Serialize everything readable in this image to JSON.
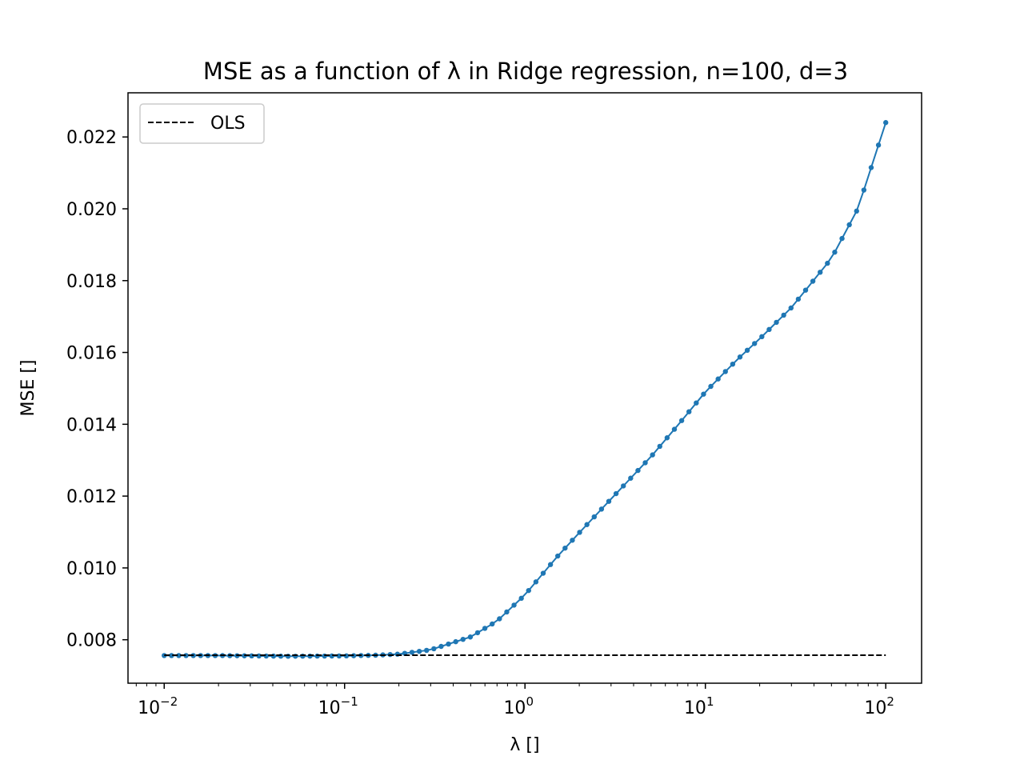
{
  "chart_data": {
    "type": "line",
    "title": "MSE as a function of λ in Ridge regression, n=100, d=3",
    "xlabel": "λ []",
    "ylabel": "MSE []",
    "xscale": "log",
    "xlim": [
      0.0063,
      158
    ],
    "ylim": [
      0.00679,
      0.02323
    ],
    "xticks": [
      {
        "value": 0.01,
        "base": "10",
        "exp": "−2"
      },
      {
        "value": 0.1,
        "base": "10",
        "exp": "−1"
      },
      {
        "value": 1,
        "base": "10",
        "exp": "0"
      },
      {
        "value": 10,
        "base": "10",
        "exp": "1"
      },
      {
        "value": 100,
        "base": "10",
        "exp": "2"
      }
    ],
    "yticks": [
      {
        "value": 0.008,
        "label": "0.008"
      },
      {
        "value": 0.01,
        "label": "0.010"
      },
      {
        "value": 0.012,
        "label": "0.012"
      },
      {
        "value": 0.014,
        "label": "0.014"
      },
      {
        "value": 0.016,
        "label": "0.016"
      },
      {
        "value": 0.018,
        "label": "0.018"
      },
      {
        "value": 0.02,
        "label": "0.020"
      },
      {
        "value": 0.022,
        "label": "0.022"
      }
    ],
    "grid": false,
    "legend": {
      "placement": "upper-left",
      "entries": [
        "OLS"
      ]
    },
    "series": [
      {
        "style": "line-with-markers",
        "color": "#1f77b4",
        "x_range": [
          0.01,
          100
        ],
        "points": 100,
        "spacing": "log",
        "curve_x": [
          0.01,
          0.02,
          0.05,
          0.1,
          0.15,
          0.2,
          0.3,
          0.5,
          0.7,
          1,
          1.5,
          2,
          3,
          5,
          7,
          10,
          15,
          20,
          30,
          50,
          70,
          100
        ],
        "curve_y": [
          0.00756,
          0.00756,
          0.00754,
          0.00755,
          0.00757,
          0.0076,
          0.00772,
          0.00808,
          0.00852,
          0.00925,
          0.0103,
          0.01098,
          0.01192,
          0.0131,
          0.01396,
          0.0149,
          0.0158,
          0.01638,
          0.01725,
          0.01862,
          0.02,
          0.0224
        ]
      },
      {
        "name": "OLS",
        "style": "dashed",
        "color": "#000000",
        "x": [
          0.01,
          100
        ],
        "y": [
          0.00757,
          0.00757
        ]
      }
    ]
  }
}
